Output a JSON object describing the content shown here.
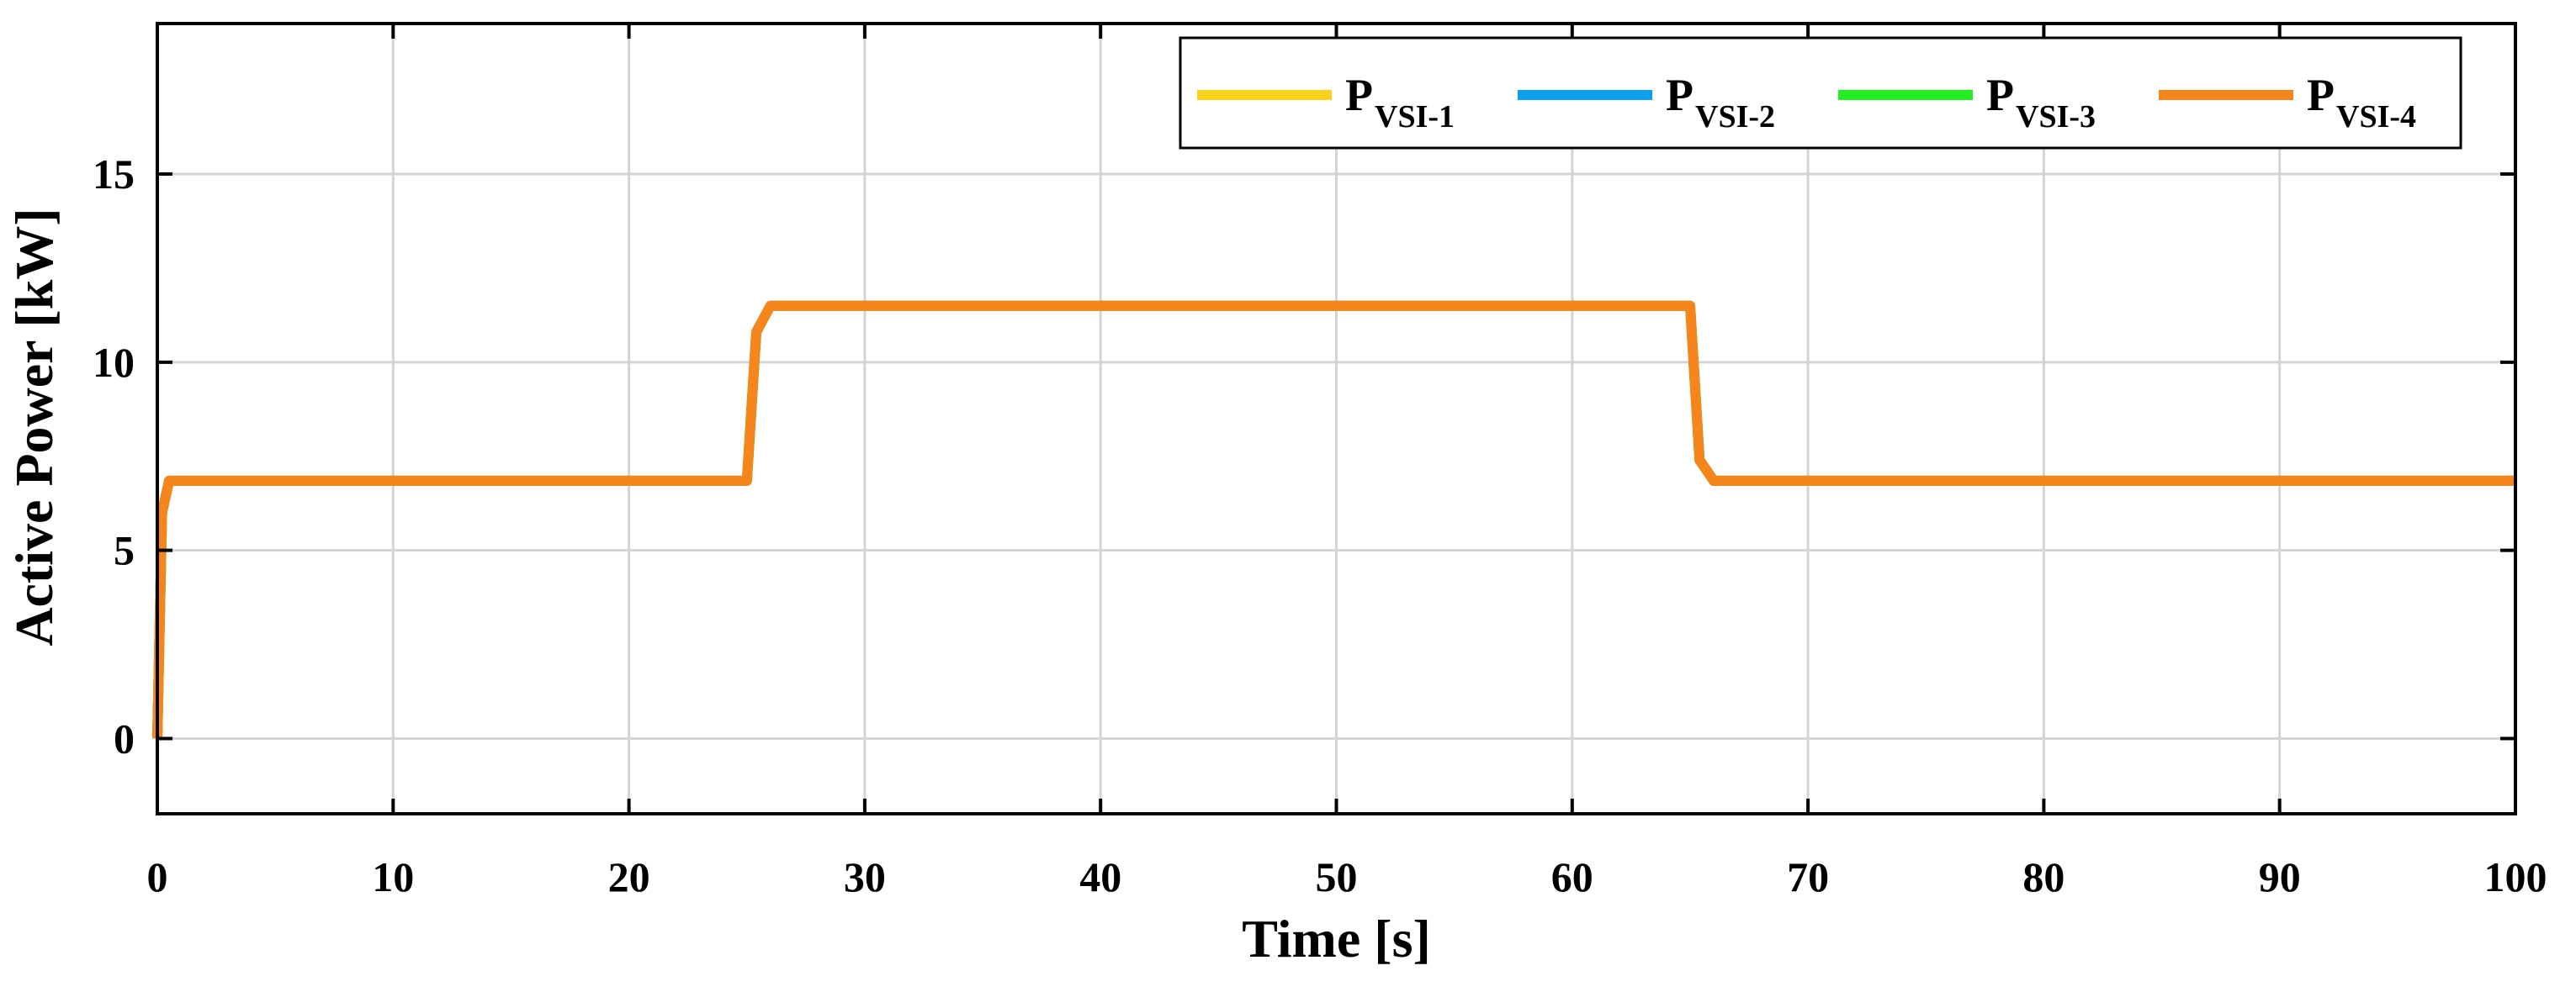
{
  "chart_data": {
    "type": "line",
    "title": "",
    "xlabel": "Time [s]",
    "ylabel": "Active Power [kW]",
    "xlim": [
      0,
      100
    ],
    "ylim": [
      -2,
      19
    ],
    "xticks": [
      0,
      10,
      20,
      30,
      40,
      50,
      60,
      70,
      80,
      90,
      100
    ],
    "yticks": [
      0,
      5,
      10,
      15
    ],
    "grid": true,
    "legend_position": "top-right",
    "series": [
      {
        "name": "P",
        "subscript": "VSI-1",
        "color": "#ffd21a",
        "x": [
          0,
          0.2,
          0.5,
          25,
          25.4,
          26,
          65,
          65.4,
          66,
          100
        ],
        "y": [
          0,
          6.0,
          6.85,
          6.85,
          10.8,
          11.5,
          11.5,
          7.4,
          6.85,
          6.85
        ]
      },
      {
        "name": "P",
        "subscript": "VSI-2",
        "color": "#0aa0ee",
        "x": [
          0,
          0.2,
          0.5,
          25,
          25.4,
          26,
          65,
          65.4,
          66,
          100
        ],
        "y": [
          0,
          6.0,
          6.85,
          6.85,
          10.8,
          11.5,
          11.5,
          7.4,
          6.85,
          6.85
        ]
      },
      {
        "name": "P",
        "subscript": "VSI-3",
        "color": "#22ee22",
        "x": [
          0,
          0.2,
          0.5,
          25,
          25.4,
          26,
          65,
          65.4,
          66,
          100
        ],
        "y": [
          0,
          6.0,
          6.85,
          6.85,
          10.8,
          11.5,
          11.5,
          7.4,
          6.85,
          6.85
        ]
      },
      {
        "name": "P",
        "subscript": "VSI-4",
        "color": "#f6861c",
        "x": [
          0,
          0.2,
          0.5,
          25,
          25.4,
          26,
          65,
          65.4,
          66,
          100
        ],
        "y": [
          0,
          6.0,
          6.85,
          6.85,
          10.8,
          11.5,
          11.5,
          7.4,
          6.85,
          6.85
        ]
      }
    ]
  }
}
